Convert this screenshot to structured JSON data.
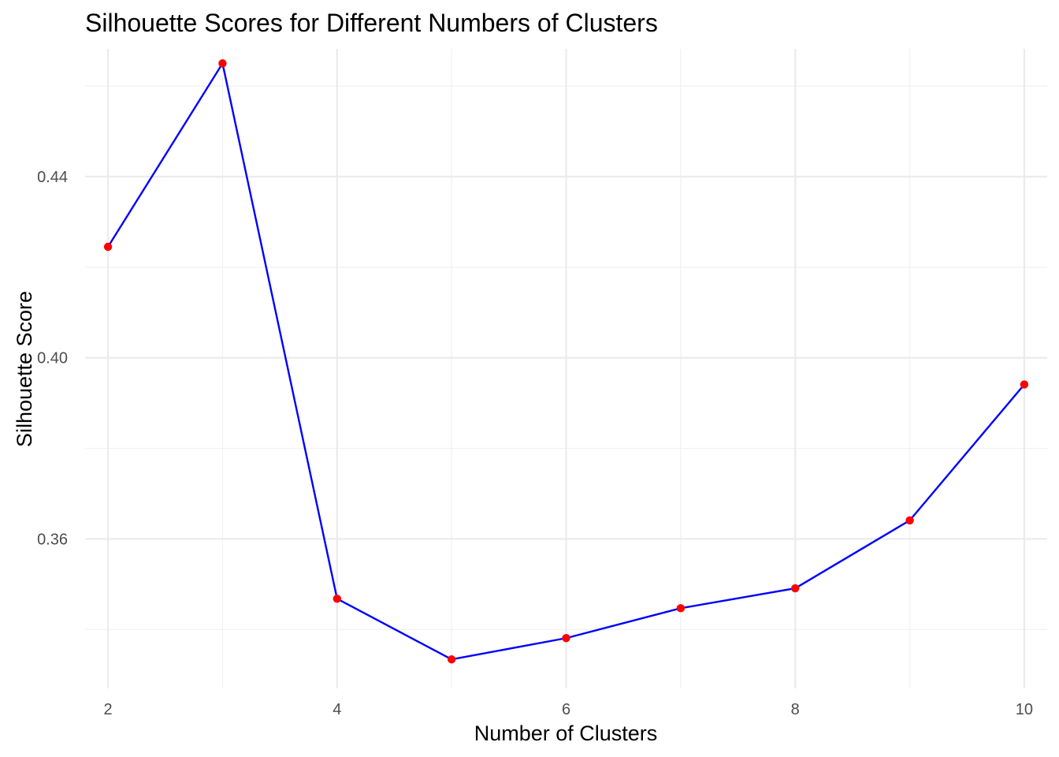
{
  "chart_data": {
    "type": "line",
    "title": "Silhouette Scores for Different Numbers of Clusters",
    "xlabel": "Number of Clusters",
    "ylabel": "Silhouette Score",
    "x": [
      2,
      3,
      4,
      5,
      6,
      7,
      8,
      9,
      10
    ],
    "series": [
      {
        "name": "Silhouette Score",
        "values": [
          0.4245,
          0.465,
          0.3468,
          0.3334,
          0.3381,
          0.3447,
          0.3491,
          0.3641,
          0.3941
        ]
      }
    ],
    "xlim": [
      1.8,
      10.2
    ],
    "ylim": [
      0.327,
      0.4682
    ],
    "x_ticks": [
      2,
      4,
      6,
      8,
      10
    ],
    "x_tick_labels": [
      "2",
      "4",
      "6",
      "8",
      "10"
    ],
    "x_minor_ticks": [
      3,
      5,
      7,
      9
    ],
    "y_ticks": [
      0.36,
      0.4,
      0.44
    ],
    "y_tick_labels": [
      "0.36",
      "0.40",
      "0.44"
    ],
    "y_minor_ticks": [
      0.34,
      0.38,
      0.42,
      0.46
    ],
    "grid": true,
    "line_color": "#0000ff",
    "point_color": "#ff0000"
  }
}
